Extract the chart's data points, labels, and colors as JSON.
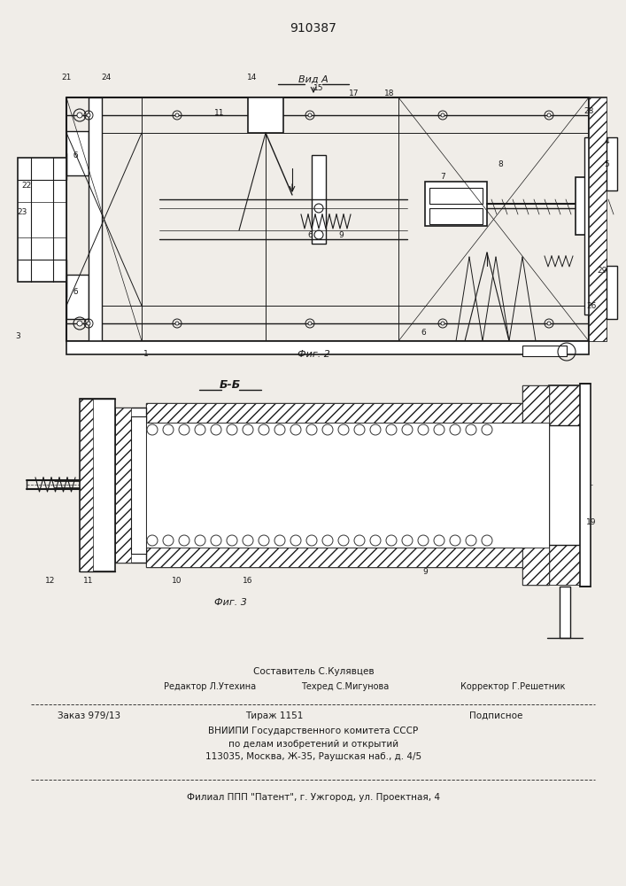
{
  "patent_number": "910387",
  "bg_color": "#f0ede8",
  "line_color": "#1a1a1a",
  "fig2_caption": "Фиг. 2",
  "fig3_caption": "Фиг. 3",
  "view_a": "Вид А",
  "section_bb": "Б-Б",
  "footer": {
    "line1_center": "Составитель С.Кулявцев",
    "line2_left": "Редактор Л.Утехина",
    "line2_center": "Техред С.Мигунова",
    "line2_right": "Корректор Г.Решетник",
    "line3_left": "Заказ 979/13",
    "line3_center": "Тираж 1151",
    "line3_right": "Подписное",
    "line4": "ВНИИПИ Государственного комитета СССР",
    "line5": "по делам изобретений и открытий",
    "line6": "113035, Москва, Ж-35, Раушская наб., д. 4/5",
    "line7": "Филиал ППП \"Патент\", г. Ужгород, ул. Проектная, 4"
  }
}
